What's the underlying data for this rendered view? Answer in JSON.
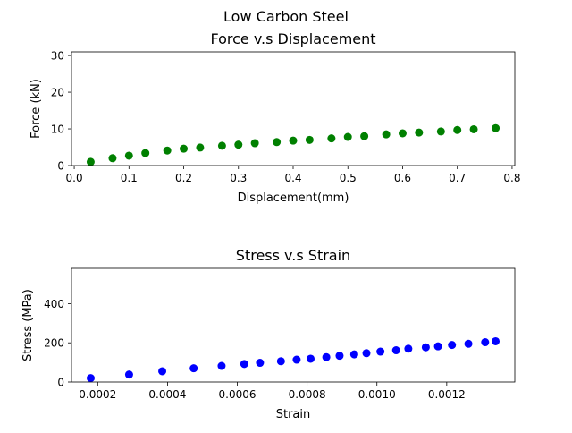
{
  "suptitle": "Low Carbon Steel",
  "chart_data": [
    {
      "type": "scatter",
      "title": "Force v.s Displacement",
      "xlabel": "Displacement(mm)",
      "ylabel": "Force (kN)",
      "xlim": [
        -0.005,
        0.805
      ],
      "ylim": [
        0,
        31
      ],
      "xticks": [
        0.0,
        0.1,
        0.2,
        0.3,
        0.4,
        0.5,
        0.6,
        0.7,
        0.8
      ],
      "xtick_labels": [
        "0.0",
        "0.1",
        "0.2",
        "0.3",
        "0.4",
        "0.5",
        "0.6",
        "0.7",
        "0.8"
      ],
      "yticks": [
        0,
        10,
        20,
        30
      ],
      "ytick_labels": [
        "0",
        "10",
        "20",
        "30"
      ],
      "grid": false,
      "series": [
        {
          "color": "#008000",
          "points": [
            [
              0.03,
              1.0
            ],
            [
              0.07,
              2.0
            ],
            [
              0.1,
              2.7
            ],
            [
              0.13,
              3.4
            ],
            [
              0.17,
              4.1
            ],
            [
              0.2,
              4.6
            ],
            [
              0.23,
              4.9
            ],
            [
              0.27,
              5.4
            ],
            [
              0.3,
              5.7
            ],
            [
              0.33,
              6.1
            ],
            [
              0.37,
              6.4
            ],
            [
              0.4,
              6.8
            ],
            [
              0.43,
              7.0
            ],
            [
              0.47,
              7.4
            ],
            [
              0.5,
              7.8
            ],
            [
              0.53,
              8.0
            ],
            [
              0.57,
              8.5
            ],
            [
              0.6,
              8.8
            ],
            [
              0.63,
              9.0
            ],
            [
              0.67,
              9.3
            ],
            [
              0.7,
              9.7
            ],
            [
              0.73,
              9.9
            ],
            [
              0.77,
              10.2
            ]
          ]
        }
      ]
    },
    {
      "type": "scatter",
      "title": "Stress v.s Strain",
      "xlabel": "Strain",
      "ylabel": "Stress (MPa)",
      "xlim": [
        0.000125,
        0.001395
      ],
      "ylim": [
        0,
        580
      ],
      "xticks": [
        0.0002,
        0.0004,
        0.0006,
        0.0008,
        0.001,
        0.0012
      ],
      "xtick_labels": [
        "0.0002",
        "0.0004",
        "0.0006",
        "0.0008",
        "0.0010",
        "0.0012"
      ],
      "yticks": [
        0,
        200,
        400
      ],
      "ytick_labels": [
        "0",
        "200",
        "400"
      ],
      "grid": false,
      "series": [
        {
          "color": "#0000ff",
          "points": [
            [
              0.00018,
              20
            ],
            [
              0.00029,
              38
            ],
            [
              0.000385,
              55
            ],
            [
              0.000475,
              70
            ],
            [
              0.000555,
              82
            ],
            [
              0.00062,
              92
            ],
            [
              0.000665,
              98
            ],
            [
              0.000725,
              106
            ],
            [
              0.00077,
              114
            ],
            [
              0.00081,
              119
            ],
            [
              0.000855,
              127
            ],
            [
              0.000893,
              134
            ],
            [
              0.000935,
              141
            ],
            [
              0.00097,
              147
            ],
            [
              0.00101,
              155
            ],
            [
              0.001055,
              162
            ],
            [
              0.00109,
              170
            ],
            [
              0.00114,
              177
            ],
            [
              0.001175,
              182
            ],
            [
              0.001215,
              189
            ],
            [
              0.001262,
              195
            ],
            [
              0.00131,
              203
            ],
            [
              0.00134,
              208
            ]
          ]
        }
      ]
    }
  ]
}
